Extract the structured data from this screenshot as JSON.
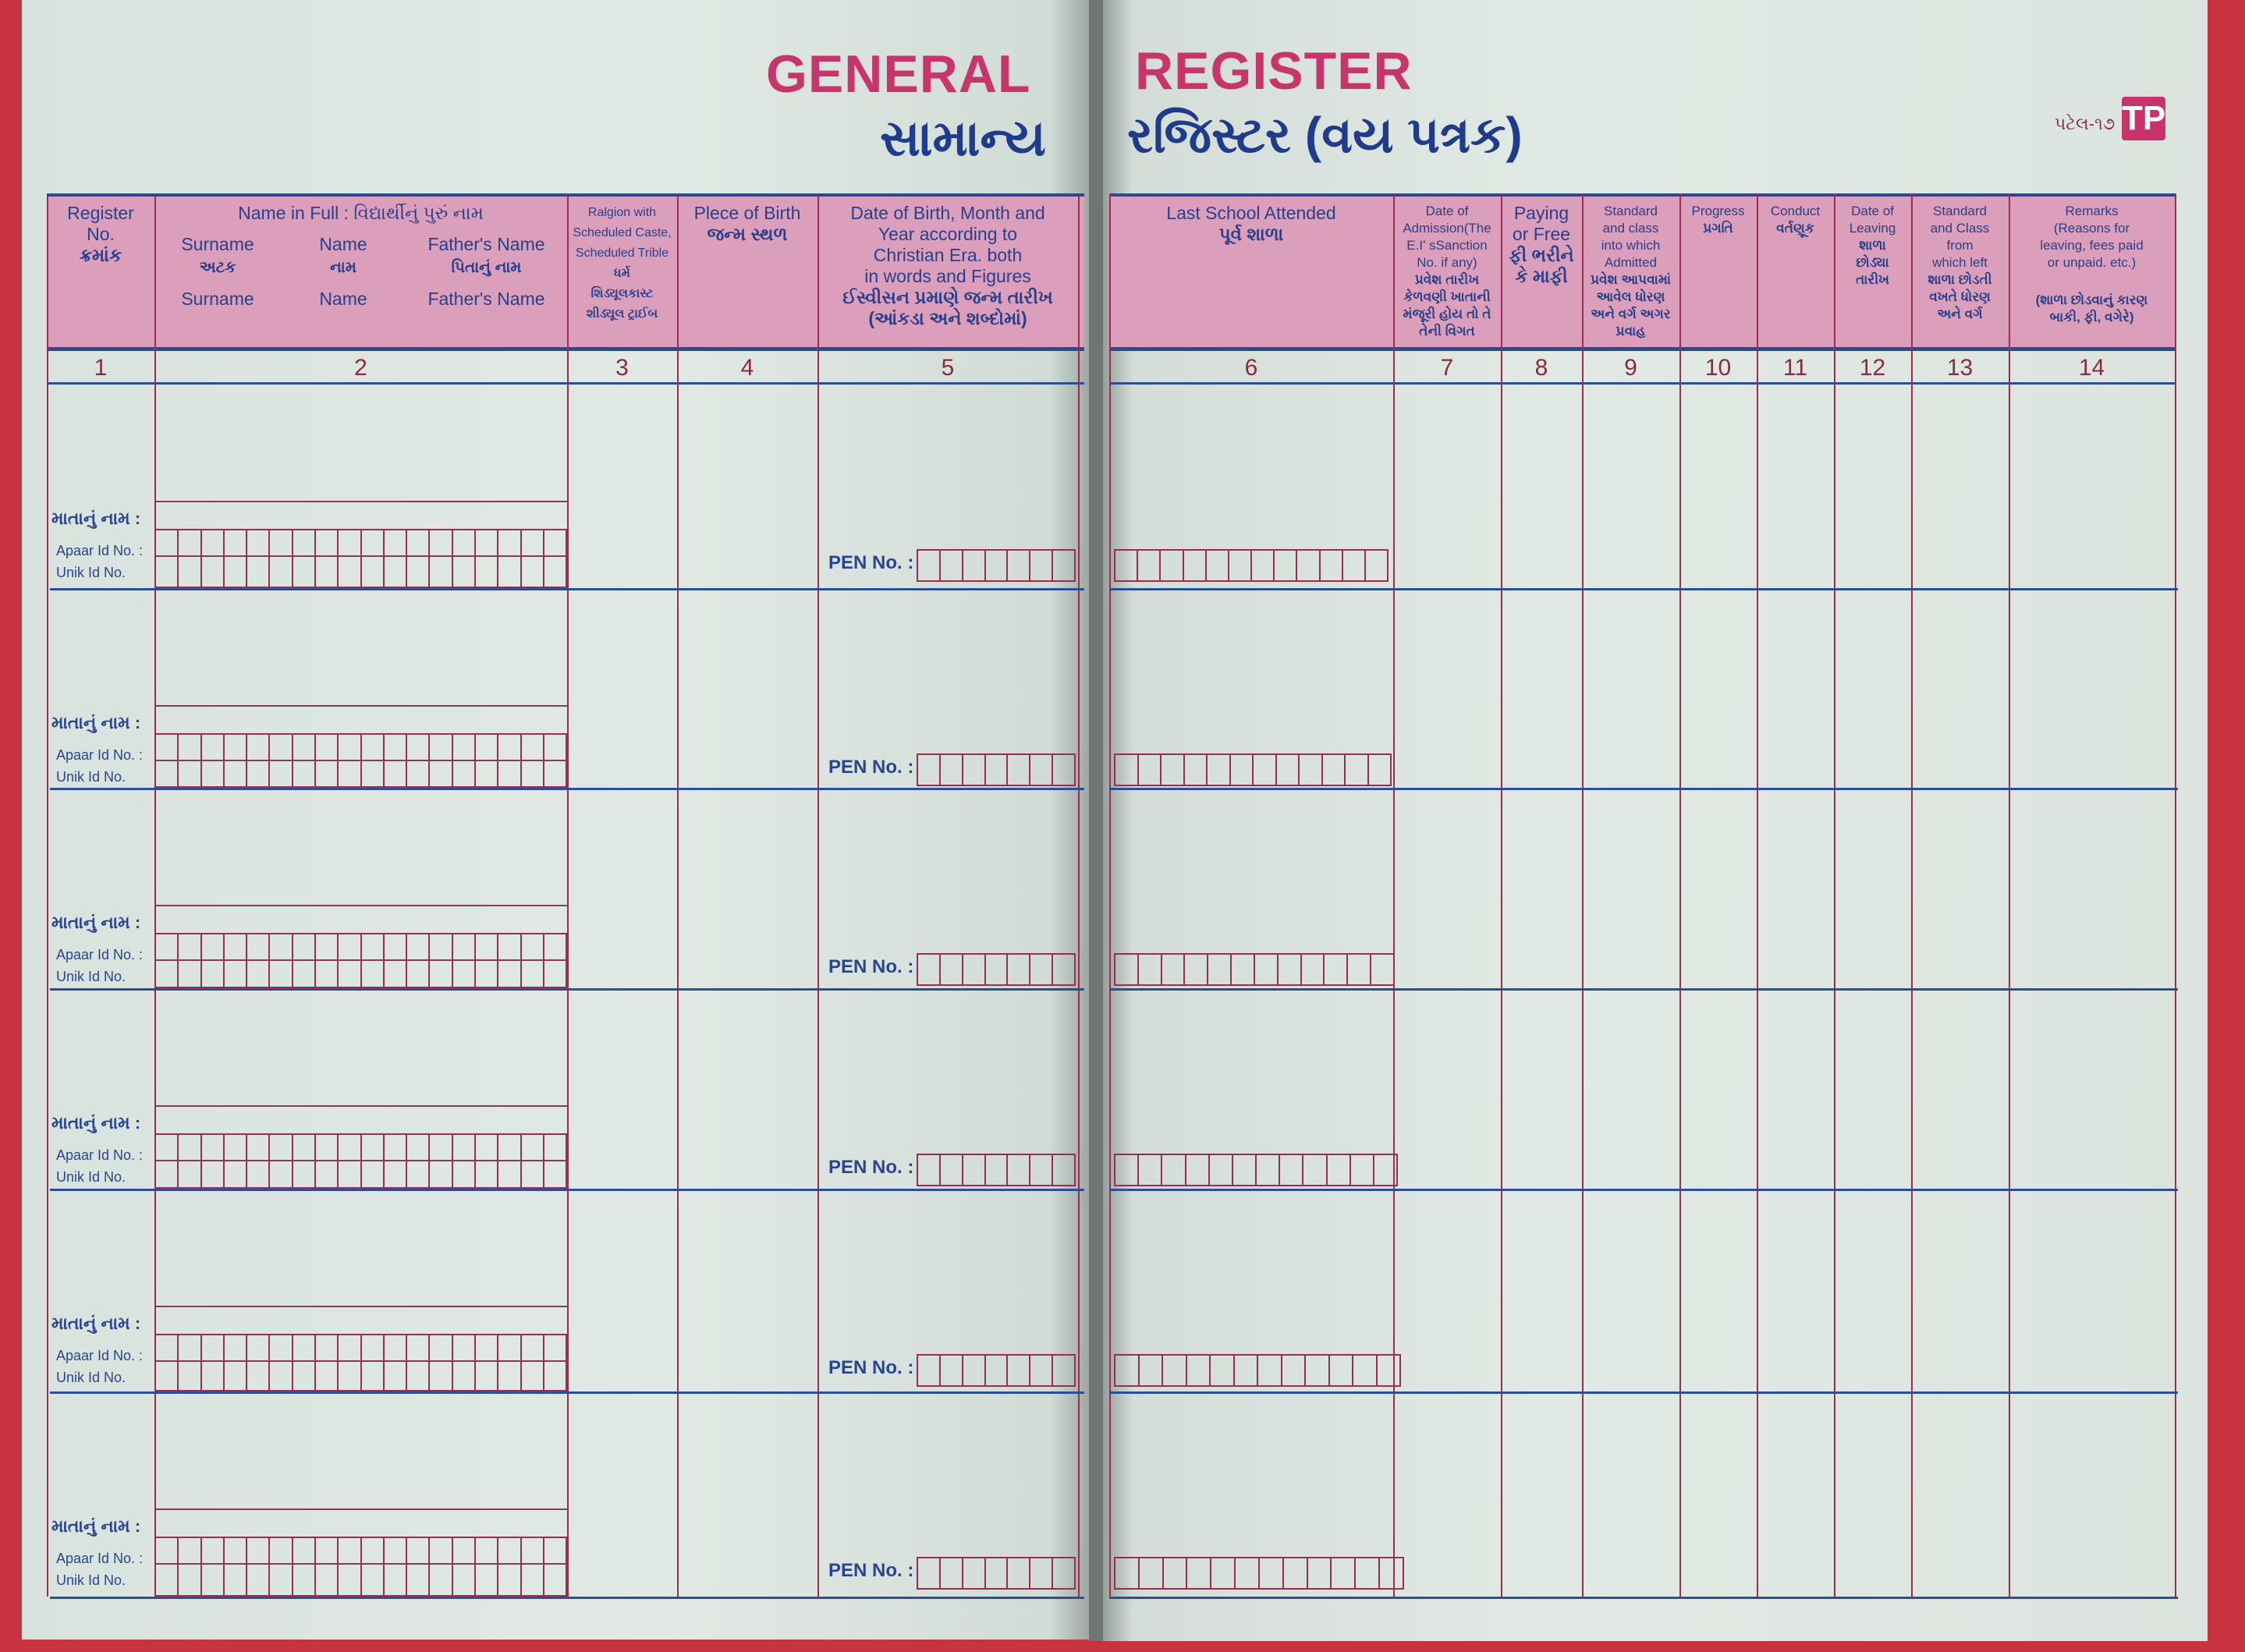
{
  "title": {
    "left_en": "GENERAL",
    "right_en": "REGISTER",
    "left_gu": "સામાન્ય",
    "right_gu": "રજિસ્ટર (વય પત્રક)"
  },
  "publisher": {
    "code": "પટેલ-૧૭",
    "logo_letters": "TP",
    "logo_color": "#c8336b"
  },
  "colors": {
    "header_band": "#dc9fbb",
    "rule_blue": "#2b4e97",
    "rule_maroon": "#9b2d52",
    "title_pink": "#c8346c",
    "text_navy": "#1f3b8c",
    "cover_red": "#c7343f"
  },
  "columns_left": [
    {
      "no": "1",
      "lines": [
        "Register",
        "No.",
        "ક્રમાંક"
      ]
    },
    {
      "no": "2",
      "title": "Name in Full : વિદ્યાર્થીનું પુરું નામ",
      "sub": [
        {
          "en": "Surname",
          "gu": "અટક",
          "repeat": "Surname"
        },
        {
          "en": "Name",
          "gu": "નામ",
          "repeat": "Name"
        },
        {
          "en": "Father's Name",
          "gu": "પિતાનું નામ",
          "repeat": "Father's Name"
        }
      ]
    },
    {
      "no": "3",
      "lines": [
        "Ralgion with",
        "Scheduled Caste,",
        "Scheduled Trible",
        "ધર્મ",
        "શિડ્યૂલકાસ્ટ",
        "શીડ્યૂલ ટ્રાઈબ"
      ]
    },
    {
      "no": "4",
      "lines": [
        "Plece of Birth",
        "જન્મ સ્થળ"
      ]
    },
    {
      "no": "5",
      "lines": [
        "Date of Birth, Month and",
        "Year according to",
        "Christian Era. both",
        "in words and Figures",
        "ઈસ્વીસન પ્રમાણે જન્મ તારીખ",
        "(આંકડા અને શબ્દોમાં)"
      ]
    }
  ],
  "columns_right": [
    {
      "no": "6",
      "lines": [
        "Last School Attended",
        "પૂર્વ શાળા"
      ]
    },
    {
      "no": "7",
      "lines": [
        "Date of",
        "Admission(The",
        "E.I' sSanction",
        "No. if any)",
        "પ્રવેશ તારીખ",
        "કેળવણી ખાતાની",
        "મંજૂરી હોય તો તે",
        "તેની વિગત"
      ]
    },
    {
      "no": "8",
      "lines": [
        "Paying",
        "or Free",
        "ફી ભરીને",
        "કે માફી"
      ]
    },
    {
      "no": "9",
      "lines": [
        "Standard",
        "and class",
        "into which",
        "Admitted",
        "પ્રવેશ આપવામાં",
        "આવેલ ધોરણ",
        "અને વર્ગ અગર",
        "પ્રવાહ"
      ]
    },
    {
      "no": "10",
      "lines": [
        "Progress",
        "પ્રગતિ"
      ]
    },
    {
      "no": "11",
      "lines": [
        "Conduct",
        "વર્તણૂક"
      ]
    },
    {
      "no": "12",
      "lines": [
        "Date of",
        "Leaving",
        "શાળા",
        "છોડ્યા",
        "તારીખ"
      ]
    },
    {
      "no": "13",
      "lines": [
        "Standard",
        "and Class",
        "from",
        "which left",
        "શાળા છોડતી",
        "વખતે ધોરણ",
        "અને વર્ગ"
      ]
    },
    {
      "no": "14",
      "lines": [
        "Remarks",
        "(Reasons for",
        "leaving, fees paid",
        "or unpaid. etc.)",
        "",
        "(શાળા છોડવાનું કારણ",
        "બાકી, ફી, વગેરે)"
      ]
    }
  ],
  "row_labels": {
    "mother": "માતાનું નામ :",
    "apaar": "Apaar Id No. :",
    "unik": "Unik Id  No.",
    "pen": "PEN No. :"
  }
}
